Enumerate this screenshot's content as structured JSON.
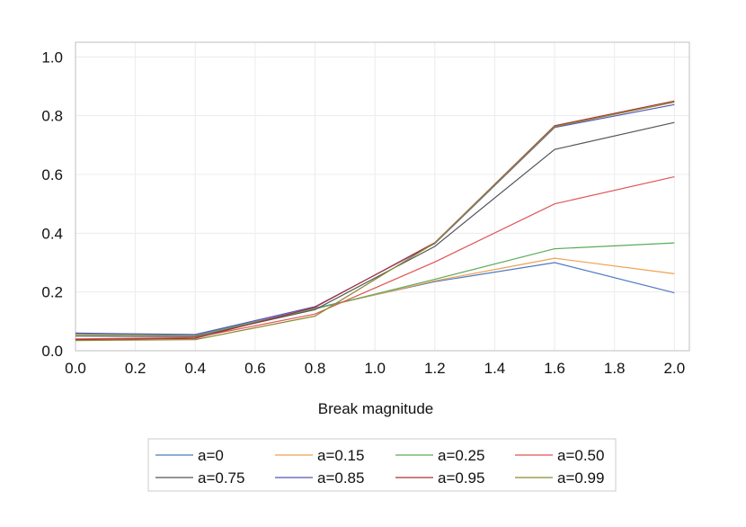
{
  "chart_data": {
    "type": "line",
    "title": "",
    "xlabel": "Break magnitude",
    "ylabel": "",
    "xlim": [
      0.0,
      2.05
    ],
    "ylim": [
      0.0,
      1.05
    ],
    "x_ticks": [
      "0.0",
      "0.2",
      "0.4",
      "0.6",
      "0.8",
      "1.0",
      "1.2",
      "1.4",
      "1.6",
      "1.8",
      "2.0"
    ],
    "y_ticks": [
      "0.0",
      "0.2",
      "0.4",
      "0.6",
      "0.8",
      "1.0"
    ],
    "grid": true,
    "legend_position": "bottom",
    "x": [
      0.0,
      0.4,
      0.8,
      1.2,
      1.6,
      2.0
    ],
    "series": [
      {
        "name": "a=0",
        "color": "#4e79c3",
        "values": [
          0.055,
          0.052,
          0.145,
          0.235,
          0.3,
          0.197
        ]
      },
      {
        "name": "a=0.15",
        "color": "#f0a050",
        "values": [
          0.055,
          0.052,
          0.143,
          0.238,
          0.315,
          0.262
        ]
      },
      {
        "name": "a=0.25",
        "color": "#5aab5a",
        "values": [
          0.057,
          0.053,
          0.142,
          0.243,
          0.347,
          0.367
        ]
      },
      {
        "name": "a=0.50",
        "color": "#e05555",
        "values": [
          0.04,
          0.045,
          0.125,
          0.302,
          0.5,
          0.592
        ]
      },
      {
        "name": "a=0.75",
        "color": "#555555",
        "values": [
          0.05,
          0.048,
          0.14,
          0.355,
          0.685,
          0.777
        ]
      },
      {
        "name": "a=0.85",
        "color": "#5555bb",
        "values": [
          0.06,
          0.055,
          0.15,
          0.365,
          0.76,
          0.838
        ]
      },
      {
        "name": "a=0.95",
        "color": "#aa3333",
        "values": [
          0.038,
          0.042,
          0.148,
          0.368,
          0.766,
          0.85
        ]
      },
      {
        "name": "a=0.99",
        "color": "#8a8a30",
        "values": [
          0.035,
          0.038,
          0.118,
          0.367,
          0.763,
          0.846
        ]
      }
    ]
  }
}
